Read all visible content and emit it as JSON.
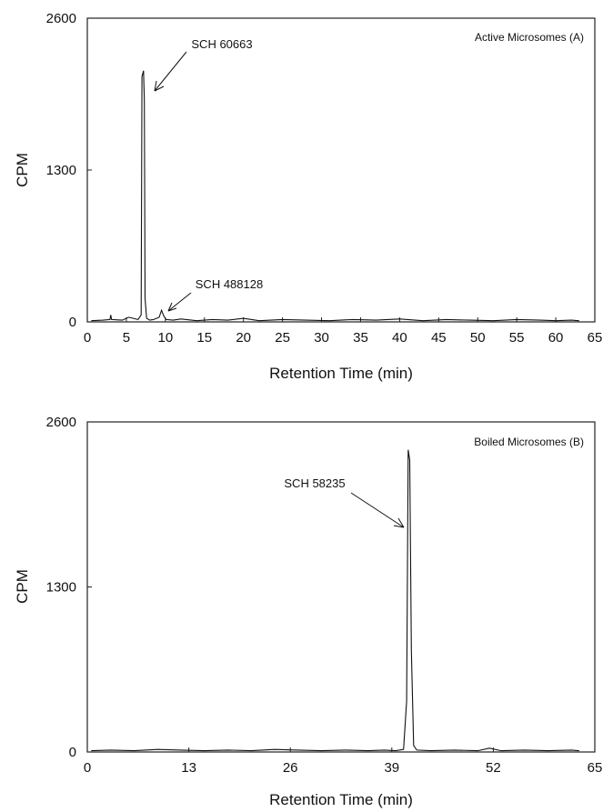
{
  "chart_data": [
    {
      "type": "line",
      "panel_label": "Active Microsomes (A)",
      "xlabel": "Retention Time (min)",
      "ylabel": "CPM",
      "xlim": [
        0,
        65
      ],
      "ylim": [
        0,
        2600
      ],
      "xticks": [
        0,
        5,
        10,
        15,
        20,
        25,
        30,
        35,
        40,
        45,
        50,
        55,
        60,
        65
      ],
      "yticks": [
        0,
        1300,
        2600
      ],
      "grid": false,
      "x": [
        0.5,
        2.0,
        2.9,
        3.0,
        3.1,
        4.5,
        5.3,
        6.5,
        6.9,
        7.0,
        7.2,
        7.3,
        7.4,
        7.6,
        8.0,
        8.5,
        9.2,
        9.5,
        9.8,
        10.1,
        11.0,
        12.0,
        14.0,
        16.0,
        18.0,
        20.0,
        22.0,
        25.0,
        28.0,
        31.0,
        34.0,
        37.0,
        40.0,
        43.0,
        46.0,
        49.0,
        52.0,
        55.0,
        58.0,
        60.0,
        62.0,
        63.0
      ],
      "y": [
        10,
        15,
        20,
        60,
        20,
        15,
        40,
        20,
        60,
        2100,
        2150,
        1900,
        200,
        30,
        15,
        20,
        40,
        100,
        50,
        20,
        15,
        25,
        10,
        20,
        15,
        30,
        10,
        20,
        15,
        10,
        20,
        15,
        25,
        10,
        20,
        15,
        10,
        20,
        15,
        10,
        15,
        10
      ],
      "annotations": [
        {
          "text": "SCH 60663",
          "x": 7.3,
          "y": 2050
        },
        {
          "text": "SCH 488128",
          "x": 9.5,
          "y": 120
        }
      ]
    },
    {
      "type": "line",
      "panel_label": "Boiled Microsomes (B)",
      "xlabel": "Retention Time (min)",
      "ylabel": "CPM",
      "xlim": [
        0,
        65
      ],
      "ylim": [
        0,
        2600
      ],
      "xticks": [
        0,
        13,
        26,
        39,
        52,
        65
      ],
      "yticks": [
        0,
        1300,
        2600
      ],
      "grid": false,
      "x": [
        0.5,
        3.0,
        6.0,
        9.0,
        12.0,
        15.0,
        18.0,
        21.0,
        24.0,
        27.0,
        30.0,
        33.0,
        36.0,
        38.0,
        39.5,
        40.5,
        40.9,
        41.1,
        41.3,
        41.5,
        41.8,
        42.2,
        44.0,
        47.0,
        50.0,
        51.5,
        53.0,
        56.0,
        59.0,
        62.0,
        63.0
      ],
      "y": [
        10,
        15,
        10,
        20,
        15,
        10,
        15,
        10,
        20,
        15,
        10,
        15,
        10,
        15,
        10,
        20,
        400,
        2380,
        2300,
        800,
        50,
        15,
        10,
        15,
        10,
        30,
        10,
        15,
        10,
        15,
        10
      ],
      "annotations": [
        {
          "text": "SCH 58235",
          "x": 41.0,
          "y": 1750
        }
      ]
    }
  ]
}
